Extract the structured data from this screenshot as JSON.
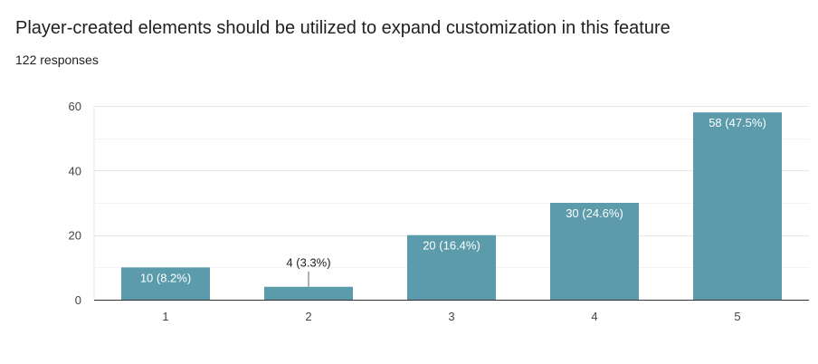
{
  "header": {
    "title": "Player-created elements should be utilized to expand customization in this feature",
    "responses": "122 responses"
  },
  "chart_data": {
    "type": "bar",
    "categories": [
      "1",
      "2",
      "3",
      "4",
      "5"
    ],
    "values": [
      10,
      4,
      20,
      30,
      58
    ],
    "data_labels": [
      "10 (8.2%)",
      "4 (3.3%)",
      "20 (16.4%)",
      "30 (24.6%)",
      "58 (47.5%)"
    ],
    "ylim": [
      0,
      60
    ],
    "yticks": [
      0,
      20,
      40,
      60
    ],
    "grid": true,
    "legend": "none",
    "bar_color": "#5b9bab",
    "inside_label_color": "#ffffff",
    "outside_label_color": "#202124"
  }
}
